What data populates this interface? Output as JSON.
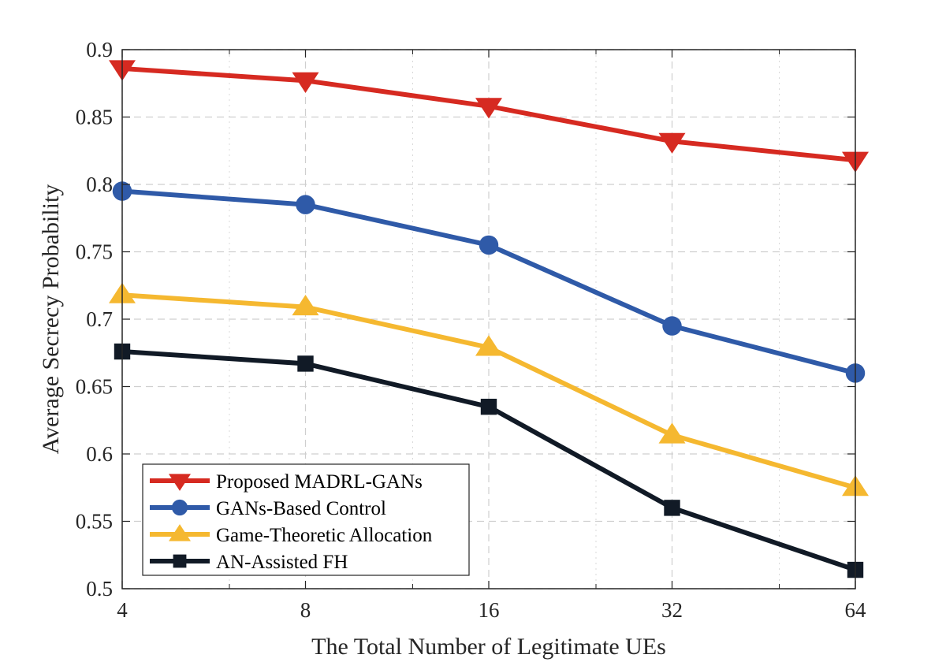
{
  "chart_data": {
    "type": "line",
    "title": "",
    "xlabel": "The Total Number of Legitimate UEs",
    "ylabel": "Average Secrecy Probability",
    "x": [
      4,
      8,
      16,
      32,
      64
    ],
    "x_scale": "log2",
    "x_ticks": [
      "4",
      "8",
      "16",
      "32",
      "64"
    ],
    "ylim": [
      0.5,
      0.9
    ],
    "y_ticks": [
      "0.5",
      "0.55",
      "0.6",
      "0.65",
      "0.7",
      "0.75",
      "0.8",
      "0.85",
      "0.9"
    ],
    "grid": true,
    "legend_position": "bottom-left",
    "series": [
      {
        "name": "Proposed MADRL-GANs",
        "color": "#d62a21",
        "marker": "triangle-down",
        "values": [
          0.886,
          0.877,
          0.858,
          0.832,
          0.818
        ]
      },
      {
        "name": "GANs-Based Control",
        "color": "#2f5aa8",
        "marker": "circle",
        "values": [
          0.795,
          0.785,
          0.755,
          0.695,
          0.66
        ]
      },
      {
        "name": "Game-Theoretic Allocation",
        "color": "#f5b830",
        "marker": "triangle-up",
        "values": [
          0.718,
          0.709,
          0.679,
          0.614,
          0.575
        ]
      },
      {
        "name": "AN-Assisted FH",
        "color": "#111a26",
        "marker": "square",
        "values": [
          0.676,
          0.667,
          0.635,
          0.56,
          0.514
        ]
      }
    ]
  }
}
